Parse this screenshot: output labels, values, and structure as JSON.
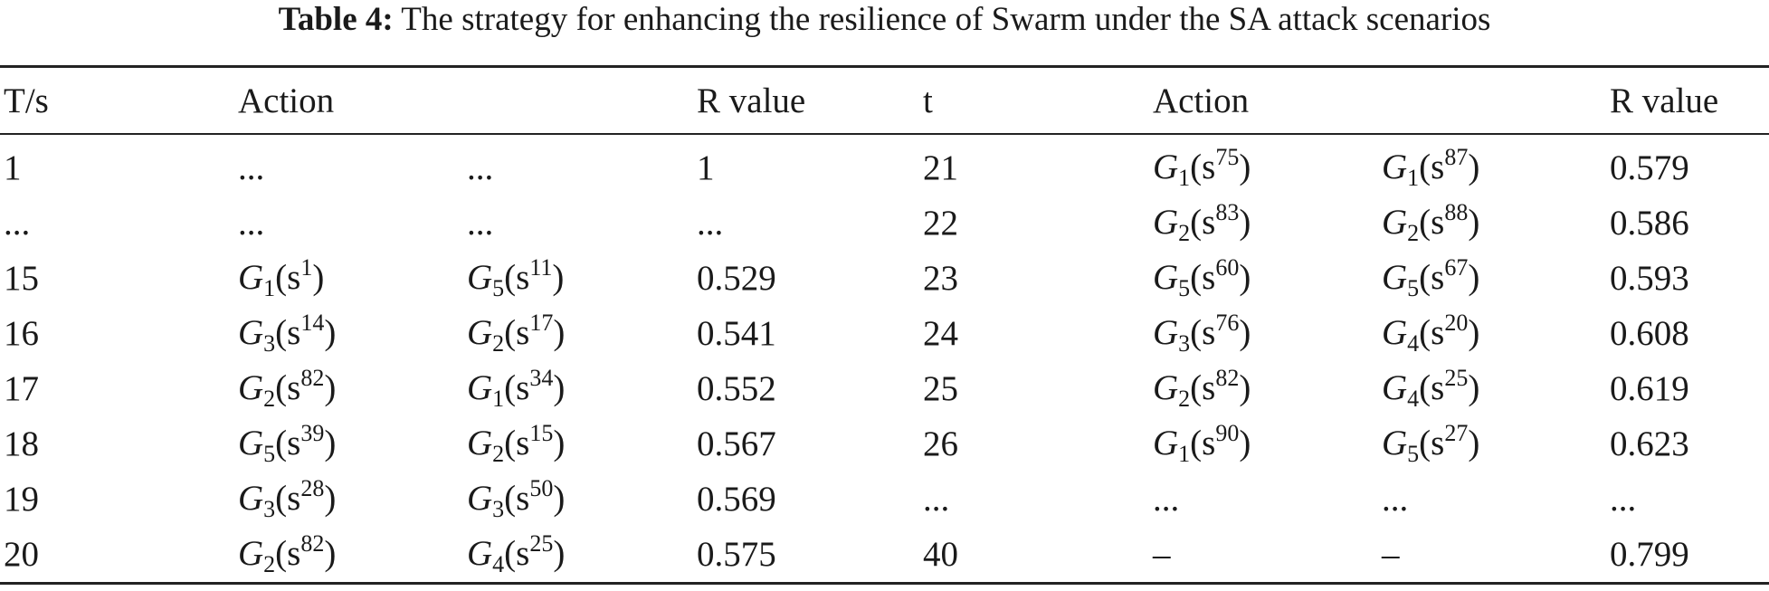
{
  "caption": {
    "label": "Table 4:",
    "text": "The strategy for enhancing the resilience of Swarm under the SA attack scenarios"
  },
  "headers": [
    "T/s",
    "Action",
    "",
    "R value",
    "t",
    "Action",
    "",
    "R value"
  ],
  "rows": [
    [
      {
        "text": "1"
      },
      {
        "text": "..."
      },
      {
        "text": "..."
      },
      {
        "text": "1"
      },
      {
        "text": "21"
      },
      {
        "g": "G",
        "sub": "1",
        "base": "s",
        "sup": "75"
      },
      {
        "g": "G",
        "sub": "1",
        "base": "s",
        "sup": "87"
      },
      {
        "text": "0.579"
      }
    ],
    [
      {
        "text": "..."
      },
      {
        "text": "..."
      },
      {
        "text": "..."
      },
      {
        "text": "..."
      },
      {
        "text": "22"
      },
      {
        "g": "G",
        "sub": "2",
        "base": "s",
        "sup": "83"
      },
      {
        "g": "G",
        "sub": "2",
        "base": "s",
        "sup": "88"
      },
      {
        "text": "0.586"
      }
    ],
    [
      {
        "text": "15"
      },
      {
        "g": "G",
        "sub": "1",
        "base": "s",
        "sup": "1"
      },
      {
        "g": "G",
        "sub": "5",
        "base": "s",
        "sup": "11"
      },
      {
        "text": "0.529"
      },
      {
        "text": "23"
      },
      {
        "g": "G",
        "sub": "5",
        "base": "s",
        "sup": "60"
      },
      {
        "g": "G",
        "sub": "5",
        "base": "s",
        "sup": "67"
      },
      {
        "text": "0.593"
      }
    ],
    [
      {
        "text": "16"
      },
      {
        "g": "G",
        "sub": "3",
        "base": "s",
        "sup": "14"
      },
      {
        "g": "G",
        "sub": "2",
        "base": "s",
        "sup": "17"
      },
      {
        "text": "0.541"
      },
      {
        "text": "24"
      },
      {
        "g": "G",
        "sub": "3",
        "base": "s",
        "sup": "76"
      },
      {
        "g": "G",
        "sub": "4",
        "base": "s",
        "sup": "20"
      },
      {
        "text": "0.608"
      }
    ],
    [
      {
        "text": "17"
      },
      {
        "g": "G",
        "sub": "2",
        "base": "s",
        "sup": "82"
      },
      {
        "g": "G",
        "sub": "1",
        "base": "s",
        "sup": "34"
      },
      {
        "text": "0.552"
      },
      {
        "text": "25"
      },
      {
        "g": "G",
        "sub": "2",
        "base": "s",
        "sup": "82"
      },
      {
        "g": "G",
        "sub": "4",
        "base": "s",
        "sup": "25"
      },
      {
        "text": "0.619"
      }
    ],
    [
      {
        "text": "18"
      },
      {
        "g": "G",
        "sub": "5",
        "base": "s",
        "sup": "39"
      },
      {
        "g": "G",
        "sub": "2",
        "base": "s",
        "sup": "15"
      },
      {
        "text": "0.567"
      },
      {
        "text": "26"
      },
      {
        "g": "G",
        "sub": "1",
        "base": "s",
        "sup": "90"
      },
      {
        "g": "G",
        "sub": "5",
        "base": "s",
        "sup": "27"
      },
      {
        "text": "0.623"
      }
    ],
    [
      {
        "text": "19"
      },
      {
        "g": "G",
        "sub": "3",
        "base": "s",
        "sup": "28"
      },
      {
        "g": "G",
        "sub": "3",
        "base": "s",
        "sup": "50"
      },
      {
        "text": "0.569"
      },
      {
        "text": "..."
      },
      {
        "text": "..."
      },
      {
        "text": "..."
      },
      {
        "text": "..."
      }
    ],
    [
      {
        "text": "20"
      },
      {
        "g": "G",
        "sub": "2",
        "base": "s",
        "sup": "82"
      },
      {
        "g": "G",
        "sub": "4",
        "base": "s",
        "sup": "25"
      },
      {
        "text": "0.575"
      },
      {
        "text": "40"
      },
      {
        "text": "–"
      },
      {
        "text": "–"
      },
      {
        "text": "0.799"
      }
    ]
  ]
}
